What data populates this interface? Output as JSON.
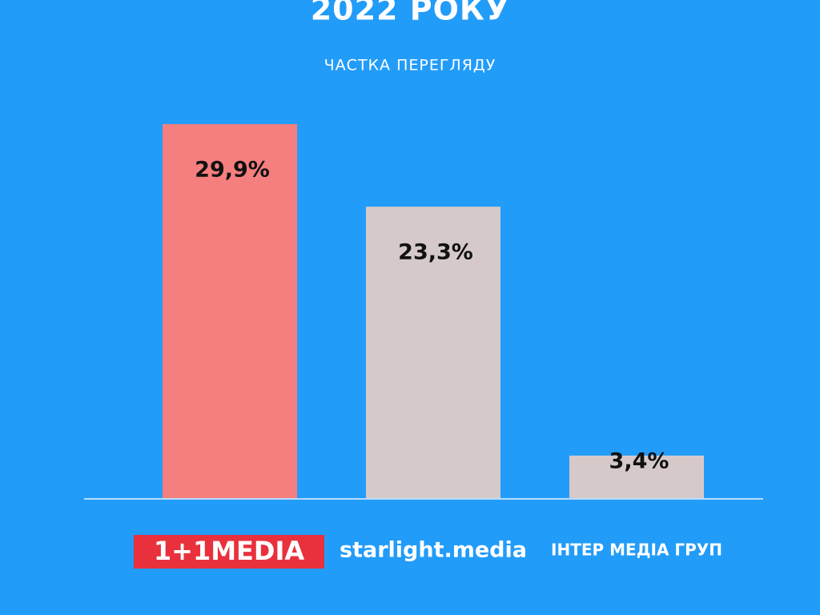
{
  "chart_data": {
    "type": "bar",
    "title": "2022 РОКУ",
    "subtitle": "ЧАСТКА ПЕРЕГЛЯДУ",
    "categories": [
      "1+1MEDIA",
      "starlight.media",
      "ІНТЕР МЕДІА ГРУП"
    ],
    "values": [
      29.9,
      23.3,
      3.4
    ],
    "value_labels": [
      "29,9%",
      "23,3%",
      "3,4%"
    ],
    "colors": [
      "#f57f7e",
      "#d6c9ca",
      "#d6c9ca"
    ]
  }
}
